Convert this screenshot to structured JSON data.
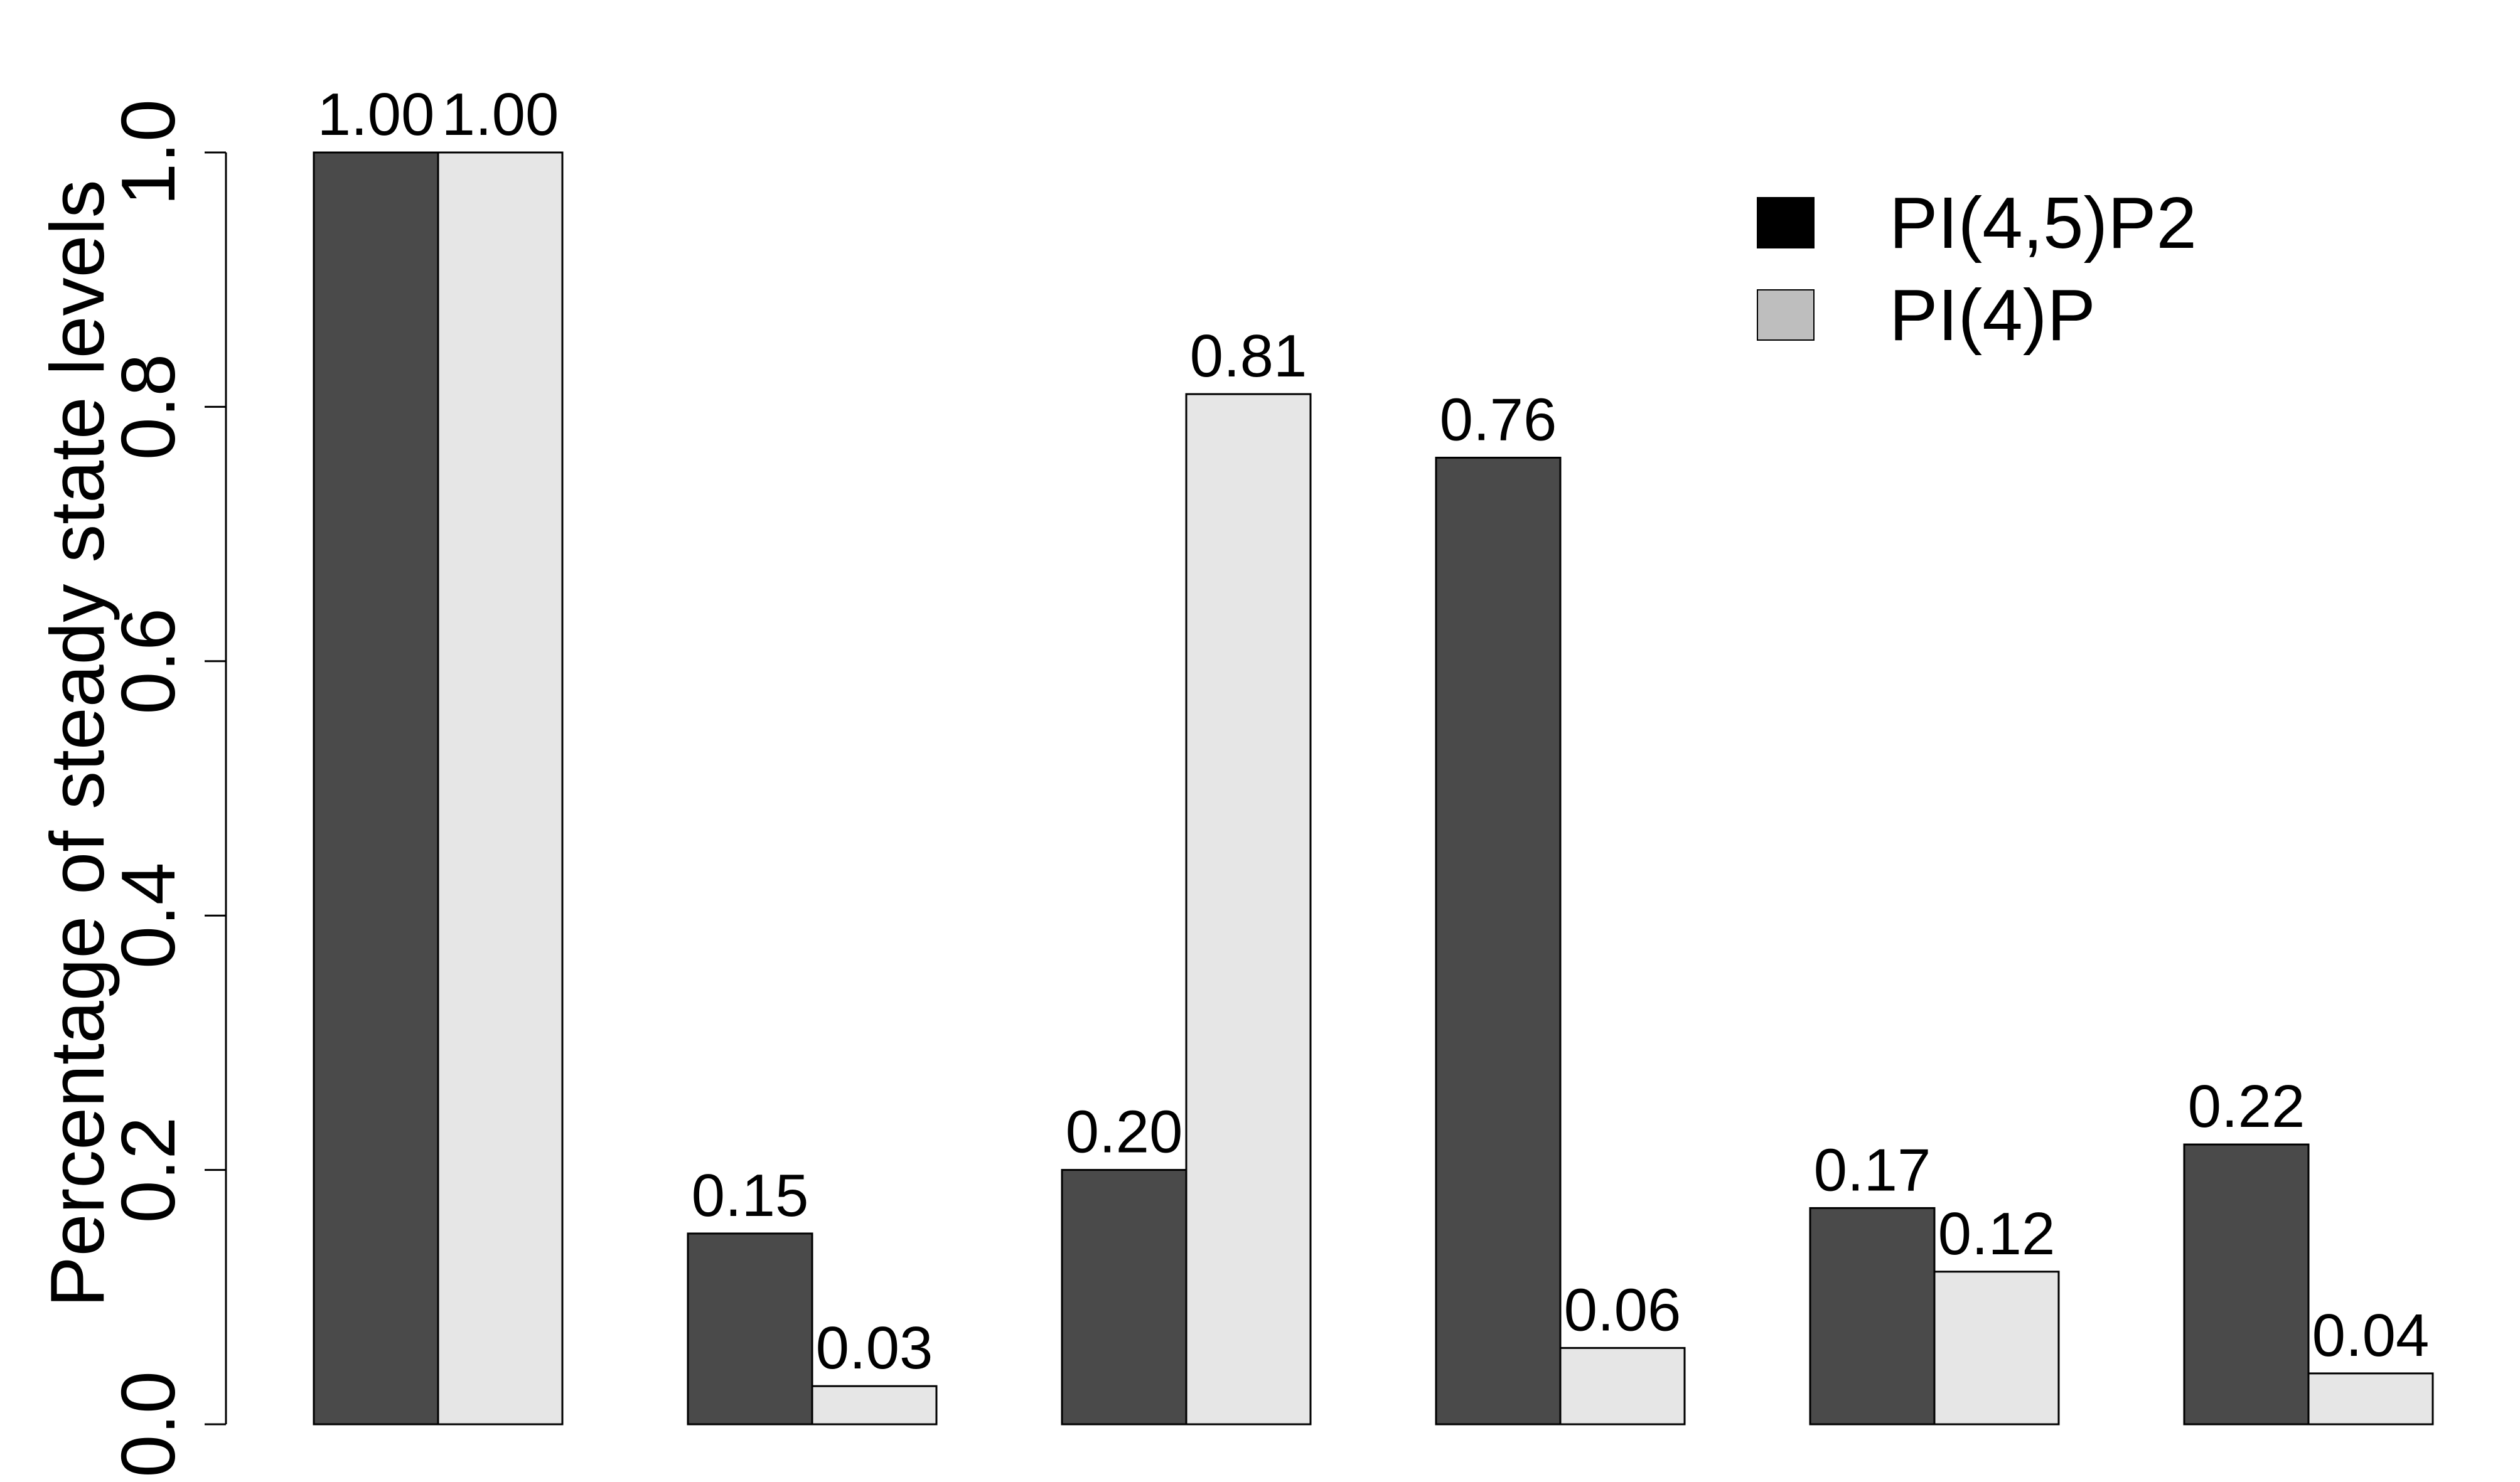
{
  "chart_data": {
    "type": "bar",
    "title": "",
    "xlabel": "",
    "ylabel": "Percentage of steady state levels",
    "ylim": [
      0,
      1
    ],
    "yticks": [
      "0.0",
      "0.2",
      "0.4",
      "0.6",
      "0.8",
      "1.0"
    ],
    "grid": false,
    "legend_position": "top-right",
    "categories": [
      "",
      "",
      "",
      "",
      "",
      ""
    ],
    "series": [
      {
        "name": "PI(4,5)P2",
        "color": "#4a4a4a",
        "legend_color": "#000000",
        "values": [
          1.0,
          0.15,
          0.2,
          0.76,
          0.17,
          0.22
        ],
        "labels": [
          "1.00",
          "0.15",
          "0.20",
          "0.76",
          "0.17",
          "0.22"
        ]
      },
      {
        "name": "PI(4)P",
        "color": "#e6e6e6",
        "legend_color": "#bebebe",
        "values": [
          1.0,
          0.03,
          0.81,
          0.06,
          0.12,
          0.04
        ],
        "labels": [
          "1.00",
          "0.03",
          "0.81",
          "0.06",
          "0.12",
          "0.04"
        ]
      }
    ]
  }
}
